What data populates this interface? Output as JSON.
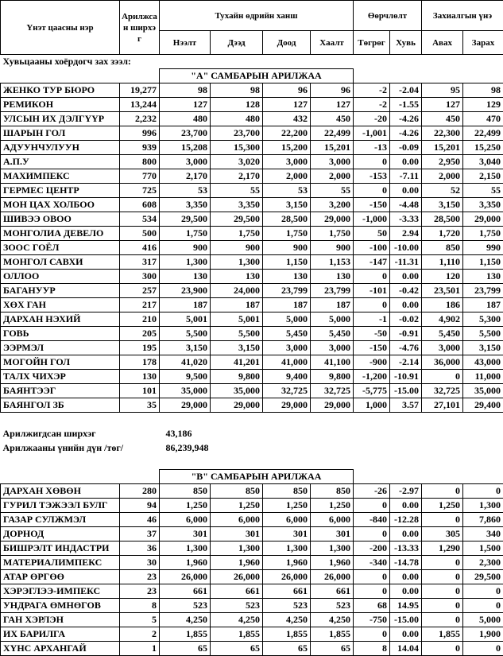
{
  "header": {
    "name": "Үнэт цаасны нэр",
    "quantity": "Арилжсан ширхэг",
    "price_group": "Тухайн өдрийн ханш",
    "change_group": "Өөрчлөлт",
    "order_group": "Захиалгын үнэ",
    "subheaders": [
      "Нээлт",
      "Дээд",
      "Доод",
      "Хаалт",
      "Төгрөг",
      "Хувь",
      "Авах",
      "Зарах"
    ]
  },
  "market_label": "Хувьцааны хоёрдогч зах зээл:",
  "section_a": {
    "title": "\"А\" САМБАРЫН АРИЛЖАА",
    "rows": [
      [
        "ЖЕНКО ТУР БЮРО",
        "19,277",
        "98",
        "98",
        "96",
        "96",
        "-2",
        "-2.04",
        "95",
        "98"
      ],
      [
        "РЕМИКОН",
        "13,244",
        "127",
        "128",
        "127",
        "127",
        "-2",
        "-1.55",
        "127",
        "129"
      ],
      [
        "УЛСЫН ИХ ДЭЛГҮҮР",
        "2,232",
        "480",
        "480",
        "432",
        "450",
        "-20",
        "-4.26",
        "450",
        "470"
      ],
      [
        "ШАРЫН ГОЛ",
        "996",
        "23,700",
        "23,700",
        "22,200",
        "22,499",
        "-1,001",
        "-4.26",
        "22,300",
        "22,499"
      ],
      [
        "АДУУНЧУЛУУН",
        "939",
        "15,208",
        "15,300",
        "15,200",
        "15,201",
        "-13",
        "-0.09",
        "15,201",
        "15,250"
      ],
      [
        "А.П.У",
        "800",
        "3,000",
        "3,020",
        "3,000",
        "3,000",
        "0",
        "0.00",
        "2,950",
        "3,040"
      ],
      [
        "МАХИМПЕКС",
        "770",
        "2,170",
        "2,170",
        "2,000",
        "2,000",
        "-153",
        "-7.11",
        "2,000",
        "2,150"
      ],
      [
        "ГЕРМЕС ЦЕНТР",
        "725",
        "53",
        "55",
        "53",
        "55",
        "0",
        "0.00",
        "52",
        "55"
      ],
      [
        "МОН ЦАХ ХОЛБОО",
        "608",
        "3,350",
        "3,350",
        "3,150",
        "3,200",
        "-150",
        "-4.48",
        "3,150",
        "3,350"
      ],
      [
        "ШИВЭЭ ОВОО",
        "534",
        "29,500",
        "29,500",
        "28,500",
        "29,000",
        "-1,000",
        "-3.33",
        "28,500",
        "29,000"
      ],
      [
        "МОНГОЛИА ДЕВЕЛО",
        "500",
        "1,750",
        "1,750",
        "1,750",
        "1,750",
        "50",
        "2.94",
        "1,720",
        "1,750"
      ],
      [
        "ЗООС ГОЁЛ",
        "416",
        "900",
        "900",
        "900",
        "900",
        "-100",
        "-10.00",
        "850",
        "990"
      ],
      [
        "МОНГОЛ САВХИ",
        "317",
        "1,300",
        "1,300",
        "1,150",
        "1,153",
        "-147",
        "-11.31",
        "1,110",
        "1,150"
      ],
      [
        "ОЛЛОО",
        "300",
        "130",
        "130",
        "130",
        "130",
        "0",
        "0.00",
        "120",
        "130"
      ],
      [
        "БАГАНУУР",
        "257",
        "23,900",
        "24,000",
        "23,799",
        "23,799",
        "-101",
        "-0.42",
        "23,501",
        "23,799"
      ],
      [
        "ХӨХ ГАН",
        "217",
        "187",
        "187",
        "187",
        "187",
        "0",
        "0.00",
        "186",
        "187"
      ],
      [
        "ДАРХАН НЭХИЙ",
        "210",
        "5,001",
        "5,001",
        "5,000",
        "5,000",
        "-1",
        "-0.02",
        "4,902",
        "5,300"
      ],
      [
        "ГОВЬ",
        "205",
        "5,500",
        "5,500",
        "5,450",
        "5,450",
        "-50",
        "-0.91",
        "5,450",
        "5,500"
      ],
      [
        "ЭЭРМЭЛ",
        "195",
        "3,150",
        "3,150",
        "3,000",
        "3,000",
        "-150",
        "-4.76",
        "3,000",
        "3,150"
      ],
      [
        "МОГОЙН ГОЛ",
        "178",
        "41,020",
        "41,201",
        "41,000",
        "41,100",
        "-900",
        "-2.14",
        "36,000",
        "43,000"
      ],
      [
        "ТАЛХ ЧИХЭР",
        "130",
        "9,500",
        "9,800",
        "9,400",
        "9,800",
        "-1,200",
        "-10.91",
        "0",
        "11,000"
      ],
      [
        "БАЯНТЭЭГ",
        "101",
        "35,000",
        "35,000",
        "32,725",
        "32,725",
        "-5,775",
        "-15.00",
        "32,725",
        "35,000"
      ],
      [
        "БАЯНГОЛ ЗБ",
        "35",
        "29,000",
        "29,000",
        "29,000",
        "29,000",
        "1,000",
        "3.57",
        "27,101",
        "29,400"
      ]
    ]
  },
  "summary": [
    {
      "label": "Арилжигдсан ширхэг",
      "value": "43,186"
    },
    {
      "label": "Арилжааны үнийн дүн /төг/",
      "value": "86,239,948"
    }
  ],
  "section_b": {
    "title": "\"В\" САМБАРЫН АРИЛЖАА",
    "rows": [
      [
        "ДАРХАН ХӨВӨН",
        "280",
        "850",
        "850",
        "850",
        "850",
        "-26",
        "-2.97",
        "0",
        "0"
      ],
      [
        "ГУРИЛ ТЭЖЭЭЛ БУЛГ",
        "94",
        "1,250",
        "1,250",
        "1,250",
        "1,250",
        "0",
        "0.00",
        "1,250",
        "1,300"
      ],
      [
        "ГАЗАР СУЛЖМЭЛ",
        "46",
        "6,000",
        "6,000",
        "6,000",
        "6,000",
        "-840",
        "-12.28",
        "0",
        "7,860"
      ],
      [
        "ДОРНОД",
        "37",
        "301",
        "301",
        "301",
        "301",
        "0",
        "0.00",
        "305",
        "340"
      ],
      [
        "БИШРЭЛТ ИНДАСТРИ",
        "36",
        "1,300",
        "1,300",
        "1,300",
        "1,300",
        "-200",
        "-13.33",
        "1,290",
        "1,500"
      ],
      [
        "МАТЕРИАЛИМПЕКС",
        "30",
        "1,960",
        "1,960",
        "1,960",
        "1,960",
        "-340",
        "-14.78",
        "0",
        "2,300"
      ],
      [
        "АТАР ӨРГӨӨ",
        "23",
        "26,000",
        "26,000",
        "26,000",
        "26,000",
        "0",
        "0.00",
        "0",
        "29,500"
      ],
      [
        "ХЭРЭГЛЭЭ-ИМПЕКС",
        "23",
        "661",
        "661",
        "661",
        "661",
        "0",
        "0.00",
        "0",
        "0"
      ],
      [
        "УНДРАГА ӨМНӨГОВ",
        "8",
        "523",
        "523",
        "523",
        "523",
        "68",
        "14.95",
        "0",
        "0"
      ],
      [
        "ГАН ХЭРЛЭН",
        "5",
        "4,250",
        "4,250",
        "4,250",
        "4,250",
        "-750",
        "-15.00",
        "0",
        "5,000"
      ],
      [
        "ИХ БАРИЛГА",
        "2",
        "1,855",
        "1,855",
        "1,855",
        "1,855",
        "0",
        "0.00",
        "1,855",
        "1,900"
      ],
      [
        "ХҮНС АРХАНГАЙ",
        "1",
        "65",
        "65",
        "65",
        "65",
        "8",
        "14.04",
        "0",
        "0"
      ]
    ]
  }
}
